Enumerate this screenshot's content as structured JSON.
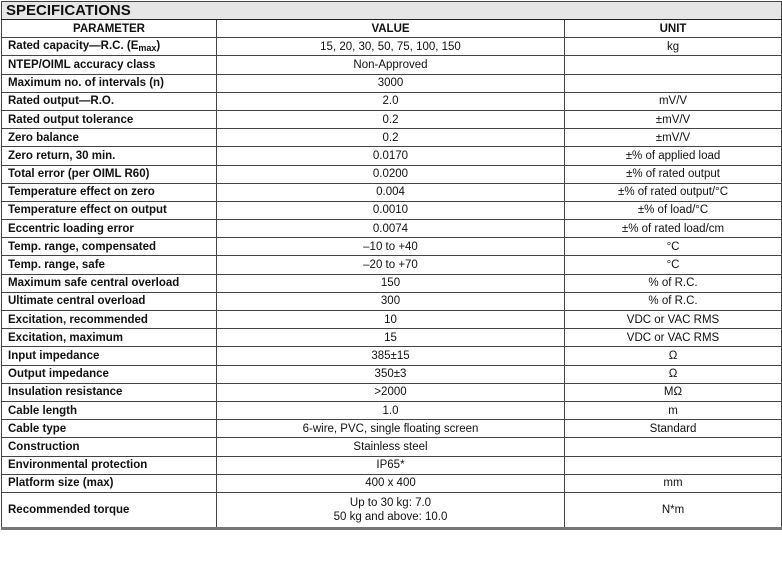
{
  "title": "SPECIFICATIONS",
  "headers": {
    "parameter": "PARAMETER",
    "value": "VALUE",
    "unit": "UNIT"
  },
  "rated_capacity": {
    "parameter": "Rated capacity—R.C. (E",
    "subscript": "max",
    "suffix": ")",
    "value": "15, 20, 30, 50, 75, 100, 150",
    "unit": "kg"
  },
  "rows": [
    {
      "parameter": "NTEP/OIML accuracy class",
      "value": "Non-Approved",
      "unit": ""
    },
    {
      "parameter": "Maximum no. of intervals (n)",
      "value": "3000",
      "unit": ""
    },
    {
      "parameter": "Rated output—R.O.",
      "value": "2.0",
      "unit": "mV/V"
    },
    {
      "parameter": "Rated output tolerance",
      "value": "0.2",
      "unit": "±mV/V"
    },
    {
      "parameter": "Zero balance",
      "value": "0.2",
      "unit": "±mV/V"
    },
    {
      "parameter": "Zero return, 30 min.",
      "value": "0.0170",
      "unit": "±% of applied load"
    },
    {
      "parameter": "Total error (per OIML R60)",
      "value": "0.0200",
      "unit": "±% of rated output"
    },
    {
      "parameter": "Temperature effect on zero",
      "value": "0.004",
      "unit": "±% of rated output/°C"
    },
    {
      "parameter": "Temperature effect on output",
      "value": "0.0010",
      "unit": "±% of load/°C"
    },
    {
      "parameter": "Eccentric loading error",
      "value": "0.0074",
      "unit": "±% of rated load/cm"
    },
    {
      "parameter": "Temp. range, compensated",
      "value": "–10 to +40",
      "unit": "°C"
    },
    {
      "parameter": "Temp. range, safe",
      "value": "–20 to +70",
      "unit": "°C"
    },
    {
      "parameter": "Maximum safe central overload",
      "value": "150",
      "unit": "% of R.C."
    },
    {
      "parameter": "Ultimate central overload",
      "value": "300",
      "unit": "% of R.C."
    },
    {
      "parameter": "Excitation, recommended",
      "value": "10",
      "unit": "VDC or VAC RMS"
    },
    {
      "parameter": "Excitation, maximum",
      "value": "15",
      "unit": "VDC or VAC RMS"
    },
    {
      "parameter": "Input impedance",
      "value": "385±15",
      "unit": "Ω"
    },
    {
      "parameter": "Output impedance",
      "value": "350±3",
      "unit": "Ω"
    },
    {
      "parameter": "Insulation resistance",
      "value": ">2000",
      "unit": "MΩ"
    },
    {
      "parameter": "Cable length",
      "value": "1.0",
      "unit": "m"
    },
    {
      "parameter": "Cable type",
      "value": "6-wire, PVC, single floating screen",
      "unit": "Standard"
    },
    {
      "parameter": "Construction",
      "value": "Stainless steel",
      "unit": ""
    },
    {
      "parameter": "Environmental protection",
      "value": "IP65*",
      "unit": ""
    },
    {
      "parameter": "Platform size (max)",
      "value": "400 x 400",
      "unit": "mm"
    }
  ],
  "torque": {
    "parameter": "Recommended torque",
    "value_line1": "Up to 30 kg: 7.0",
    "value_line2": "50 kg and above: 10.0",
    "unit": "N*m"
  }
}
